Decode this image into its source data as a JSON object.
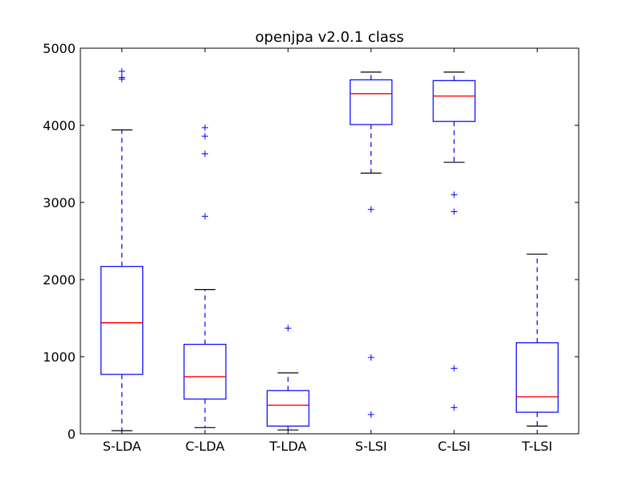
{
  "chart_data": {
    "type": "box",
    "title": "openjpa v2.0.1 class",
    "xlabel": "",
    "ylabel": "",
    "ylim": [
      0,
      5000
    ],
    "yticks": [
      0,
      1000,
      2000,
      3000,
      4000,
      5000
    ],
    "categories": [
      "S-LDA",
      "C-LDA",
      "T-LDA",
      "S-LSI",
      "C-LSI",
      "T-LSI"
    ],
    "boxes": [
      {
        "category": "S-LDA",
        "whisker_low": 40,
        "q1": 770,
        "median": 1440,
        "q3": 2170,
        "whisker_high": 3940,
        "outliers": [
          4600,
          4620,
          4700
        ]
      },
      {
        "category": "C-LDA",
        "whisker_low": 80,
        "q1": 450,
        "median": 740,
        "q3": 1160,
        "whisker_high": 1870,
        "outliers": [
          2820,
          3630,
          3860,
          3970
        ]
      },
      {
        "category": "T-LDA",
        "whisker_low": 50,
        "q1": 100,
        "median": 370,
        "q3": 560,
        "whisker_high": 790,
        "outliers": [
          1370
        ]
      },
      {
        "category": "S-LSI",
        "whisker_low": 3380,
        "q1": 4010,
        "median": 4410,
        "q3": 4590,
        "whisker_high": 4690,
        "outliers": [
          250,
          990,
          2910
        ]
      },
      {
        "category": "C-LSI",
        "whisker_low": 3520,
        "q1": 4050,
        "median": 4380,
        "q3": 4580,
        "whisker_high": 4690,
        "outliers": [
          340,
          850,
          2880,
          3100
        ]
      },
      {
        "category": "T-LSI",
        "whisker_low": 100,
        "q1": 280,
        "median": 480,
        "q3": 1180,
        "whisker_high": 2330,
        "outliers": []
      }
    ],
    "colors": {
      "box": "#0000ff",
      "median": "#ff0000",
      "whisker": "#0000ff",
      "cap": "#000000",
      "outlier": "#0000ff",
      "axes": "#000000"
    },
    "grid": false,
    "legend": "none"
  }
}
